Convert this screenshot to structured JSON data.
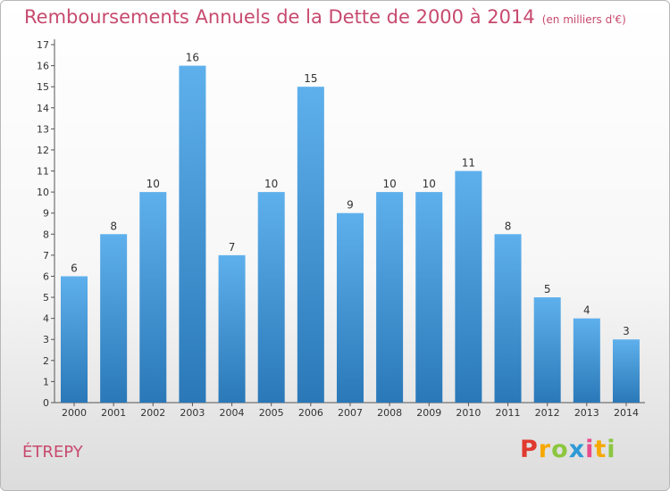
{
  "header": {
    "title": "Remboursements Annuels de la Dette de 2000 à 2014",
    "unit": "(en milliers d'€)"
  },
  "commune": "ÉTREPY",
  "logo": {
    "letters": [
      "P",
      "r",
      "o",
      "x",
      "i",
      "t",
      "i"
    ],
    "colors": [
      "#e03a2f",
      "#f6a800",
      "#8cc63f",
      "#2e9ad6",
      "#e84c8b",
      "#f6a800",
      "#8cc63f"
    ]
  },
  "chart_data": {
    "type": "bar",
    "categories": [
      "2000",
      "2001",
      "2002",
      "2003",
      "2004",
      "2005",
      "2006",
      "2007",
      "2008",
      "2009",
      "2010",
      "2011",
      "2012",
      "2013",
      "2014"
    ],
    "values": [
      6,
      8,
      10,
      16,
      7,
      10,
      15,
      9,
      10,
      10,
      11,
      8,
      5,
      4,
      3
    ],
    "ylim": [
      0,
      17
    ],
    "yticks": [
      0,
      1,
      2,
      3,
      4,
      5,
      6,
      7,
      8,
      9,
      10,
      11,
      12,
      13,
      14,
      15,
      16,
      17
    ],
    "bar_color": "#3f94d6",
    "grid": false
  }
}
